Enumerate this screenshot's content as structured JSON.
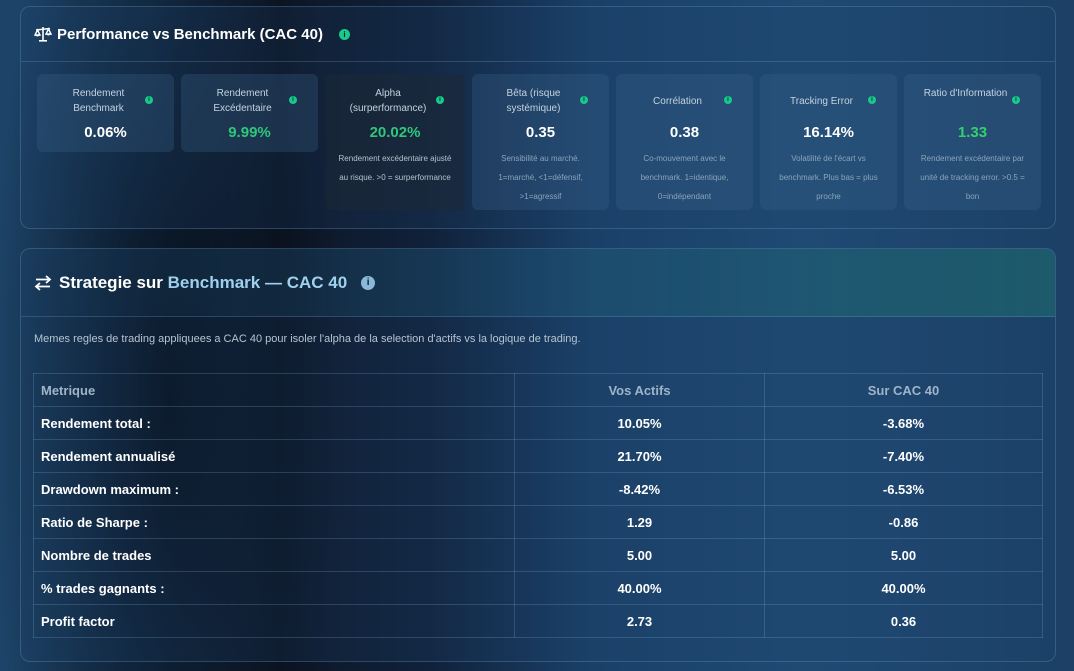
{
  "perf_panel": {
    "title": "Performance vs Benchmark (CAC 40)",
    "icon": "scale-icon",
    "cards": [
      {
        "label": "Rendement Benchmark",
        "value": "0.06%",
        "desc": ""
      },
      {
        "label": "Rendement Excédentaire",
        "value": "9.99%",
        "desc": ""
      },
      {
        "label": "Alpha (surperformance)",
        "value": "20.02%",
        "desc": "Rendement excédentaire ajusté au risque. >0 = surperformance"
      },
      {
        "label": "Bêta (risque systémique)",
        "value": "0.35",
        "desc": "Sensibilité au marché. 1=marché, <1=défensif, >1=agressif"
      },
      {
        "label": "Corrélation",
        "value": "0.38",
        "desc": "Co-mouvement avec le benchmark. 1=identique, 0=indépendant"
      },
      {
        "label": "Tracking Error",
        "value": "16.14%",
        "desc": "Volatilité de l'écart vs benchmark. Plus bas = plus proche"
      },
      {
        "label": "Ratio d'Information",
        "value": "1.33",
        "desc": "Rendement excédentaire par unité de tracking error. >0.5 = bon"
      }
    ],
    "colors": {
      "positive": "#2ec77b",
      "info": "#18c98a"
    }
  },
  "strategy_panel": {
    "title_prefix": "Strategie sur ",
    "title_accent": "Benchmark — CAC 40",
    "icon": "swap-arrows-icon",
    "description": "Memes regles de trading appliquees a CAC 40 pour isoler l'alpha de la selection d'actifs vs la logique de trading.",
    "table": {
      "headers": [
        "Metrique",
        "Vos Actifs",
        "Sur CAC 40"
      ],
      "rows": [
        [
          "Rendement total :",
          "10.05%",
          "-3.68%"
        ],
        [
          "Rendement annualisé",
          "21.70%",
          "-7.40%"
        ],
        [
          "Drawdown maximum :",
          "-8.42%",
          "-6.53%"
        ],
        [
          "Ratio de Sharpe :",
          "1.29",
          "-0.86"
        ],
        [
          "Nombre de trades",
          "5.00",
          "5.00"
        ],
        [
          "% trades gagnants :",
          "40.00%",
          "40.00%"
        ],
        [
          "Profit factor",
          "2.73",
          "0.36"
        ]
      ]
    }
  },
  "info_icon_glyph": "i"
}
